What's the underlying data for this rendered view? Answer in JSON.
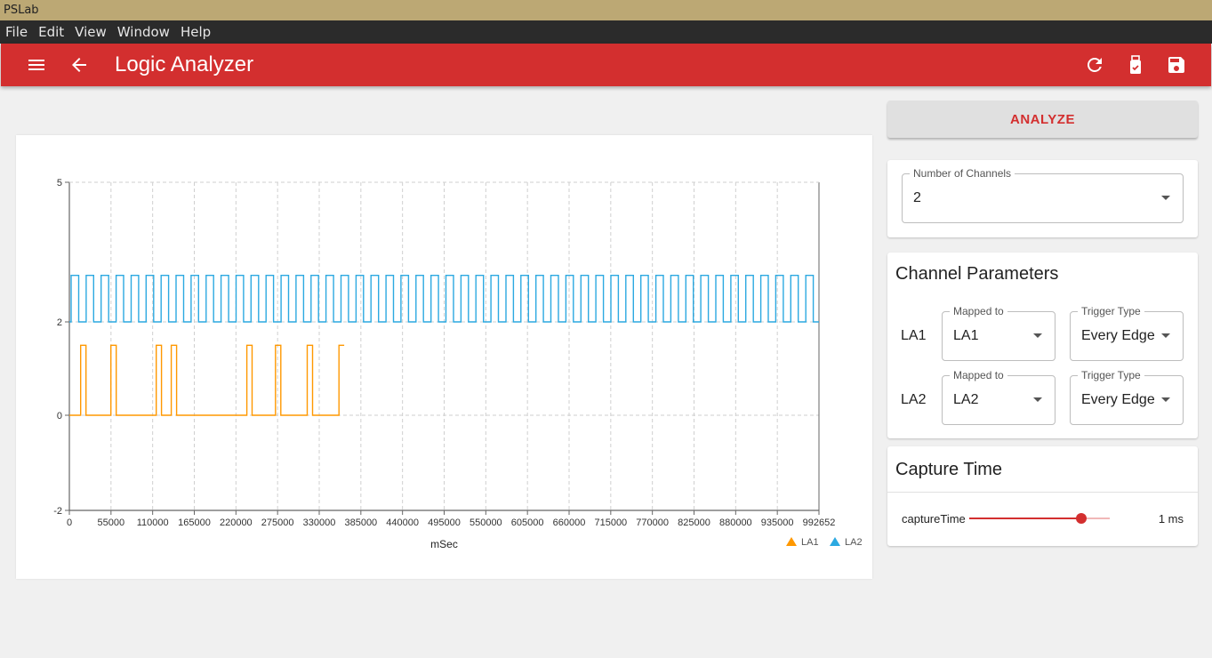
{
  "window": {
    "title": "PSLab"
  },
  "menu": {
    "items": [
      "File",
      "Edit",
      "View",
      "Window",
      "Help"
    ]
  },
  "appbar": {
    "title": "Logic Analyzer"
  },
  "icons": {
    "menu": "hamburger-menu-icon",
    "back": "arrow-back-icon",
    "refresh": "refresh-icon",
    "usb": "usb-device-icon",
    "save": "save-icon"
  },
  "colors": {
    "primary": "#d32f2f",
    "la1": "#ff9800",
    "la2": "#2ca9e1"
  },
  "analyze_label": "ANALYZE",
  "channels_select": {
    "label": "Number of Channels",
    "value": "2"
  },
  "channel_params": {
    "title": "Channel Parameters",
    "rows": [
      {
        "label": "LA1",
        "mapped_label": "Mapped to",
        "mapped_value": "LA1",
        "trigger_label": "Trigger Type",
        "trigger_value": "Every Edge"
      },
      {
        "label": "LA2",
        "mapped_label": "Mapped to",
        "mapped_value": "LA2",
        "trigger_label": "Trigger Type",
        "trigger_value": "Every Edge"
      }
    ]
  },
  "capture": {
    "title": "Capture Time",
    "param_label": "captureTime",
    "value_text": "1 ms",
    "slider_fraction": 0.8
  },
  "chart_data": {
    "type": "line",
    "xlabel": "mSec",
    "ylabel": "",
    "xlim": [
      0,
      992652
    ],
    "ylim": [
      -2,
      5
    ],
    "grid": true,
    "legend_position": "bottom-right",
    "y_ticks": [
      -2,
      0,
      2,
      5
    ],
    "x_tick_labels": [
      "0",
      "55000",
      "110000",
      "165000",
      "220000",
      "275000",
      "330000",
      "385000",
      "440000",
      "495000",
      "550000",
      "605000",
      "660000",
      "715000",
      "770000",
      "825000",
      "880000",
      "935000",
      "992652"
    ],
    "series": [
      {
        "name": "LA1",
        "color": "#ff9800",
        "x": [
          0,
          15000,
          15000,
          22000,
          22000,
          55000,
          55000,
          62000,
          62000,
          115000,
          115000,
          122000,
          122000,
          135000,
          135000,
          142000,
          142000,
          235000,
          235000,
          242000,
          242000,
          273000,
          273000,
          280000,
          280000,
          315000,
          315000,
          322000,
          322000,
          357000,
          357000,
          364000
        ],
        "y": [
          0,
          0,
          1.5,
          1.5,
          0,
          0,
          1.5,
          1.5,
          0,
          0,
          1.5,
          1.5,
          0,
          0,
          1.5,
          1.5,
          0,
          0,
          1.5,
          1.5,
          0,
          0,
          1.5,
          1.5,
          0,
          0,
          1.5,
          1.5,
          0,
          0,
          1.5,
          1.5
        ]
      },
      {
        "name": "LA2",
        "color": "#2ca9e1",
        "low": 2,
        "high": 3,
        "period": 19853,
        "duty": 0.5,
        "x_start": 0,
        "x_end": 992652
      }
    ]
  }
}
